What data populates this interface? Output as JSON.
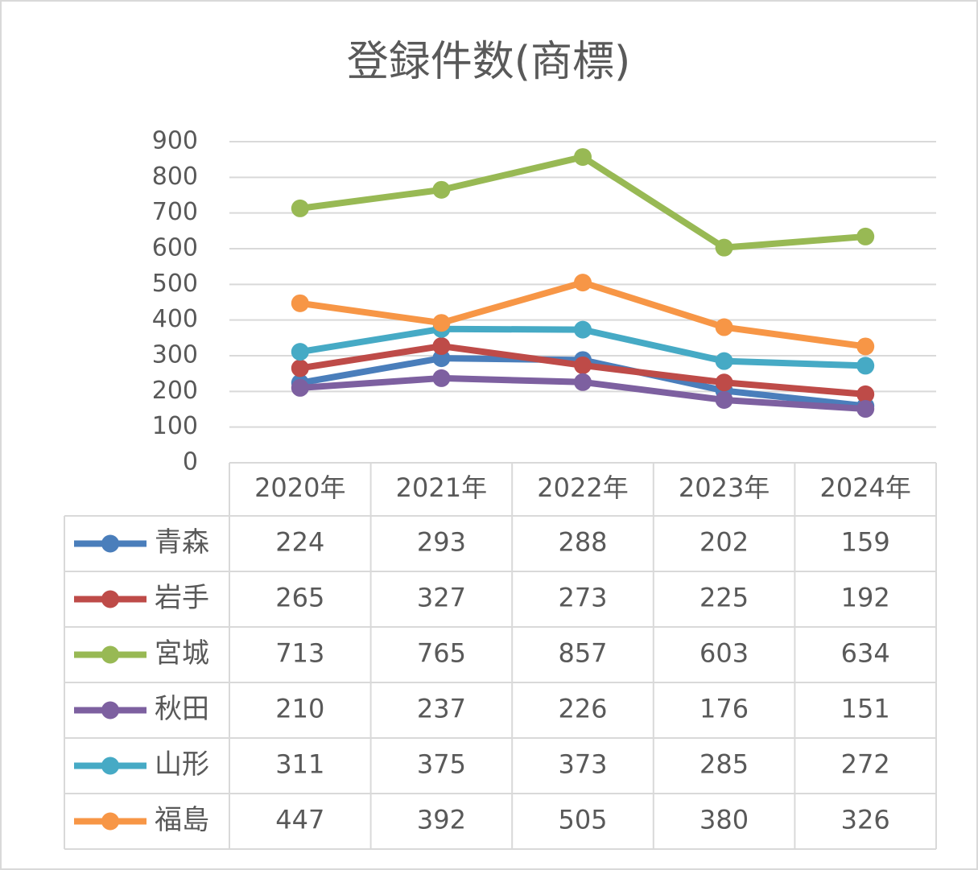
{
  "chart_data": {
    "type": "line",
    "title": "登録件数(商標)",
    "categories": [
      "2020年",
      "2021年",
      "2022年",
      "2023年",
      "2024年"
    ],
    "series": [
      {
        "name": "青森",
        "color": "#4a7ebb",
        "values": [
          224,
          293,
          288,
          202,
          159
        ]
      },
      {
        "name": "岩手",
        "color": "#be4b48",
        "values": [
          265,
          327,
          273,
          225,
          192
        ]
      },
      {
        "name": "宮城",
        "color": "#98b954",
        "values": [
          713,
          765,
          857,
          603,
          634
        ]
      },
      {
        "name": "秋田",
        "color": "#7d60a0",
        "values": [
          210,
          237,
          226,
          176,
          151
        ]
      },
      {
        "name": "山形",
        "color": "#46aac5",
        "values": [
          311,
          375,
          373,
          285,
          272
        ]
      },
      {
        "name": "福島",
        "color": "#f79646",
        "values": [
          447,
          392,
          505,
          380,
          326
        ]
      }
    ],
    "ylim": [
      0,
      900
    ],
    "yticks": [
      0,
      100,
      200,
      300,
      400,
      500,
      600,
      700,
      800,
      900
    ],
    "grid": true
  }
}
